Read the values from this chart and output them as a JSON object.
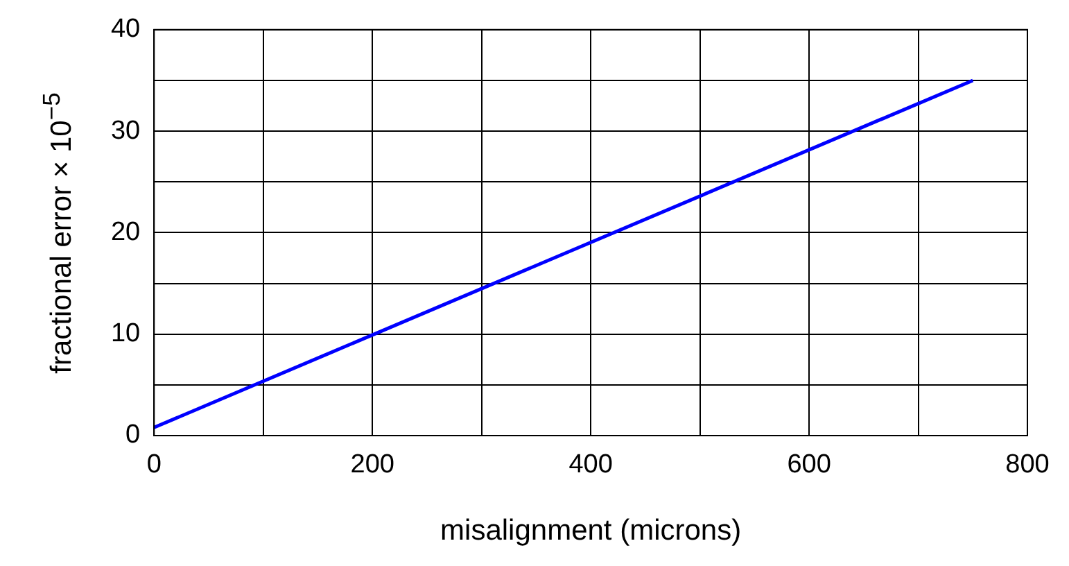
{
  "chart_data": {
    "type": "line",
    "xlabel": "misalignment (microns)",
    "ylabel": "fractional error × 10$^{−5}$",
    "x": [
      0,
      750
    ],
    "series": [
      {
        "color": "#0000ff",
        "values": [
          0.8,
          35
        ]
      }
    ],
    "xlim": [
      0,
      800
    ],
    "xticks": [
      0,
      {
        "value": 100,
        "label": null
      },
      200,
      {
        "value": 300,
        "label": null
      },
      400,
      {
        "value": 500,
        "label": null
      },
      600,
      {
        "value": 700,
        "label": null
      },
      800
    ],
    "ylim": [
      0,
      40
    ],
    "yticks": [
      0,
      {
        "value": 5,
        "label": null
      },
      10,
      {
        "value": 15,
        "label": null
      },
      20,
      {
        "value": 25,
        "label": null
      },
      30,
      {
        "value": 35,
        "label": null
      },
      40
    ],
    "grid": true,
    "legend": false,
    "marker": "none",
    "line_style": "solid"
  }
}
